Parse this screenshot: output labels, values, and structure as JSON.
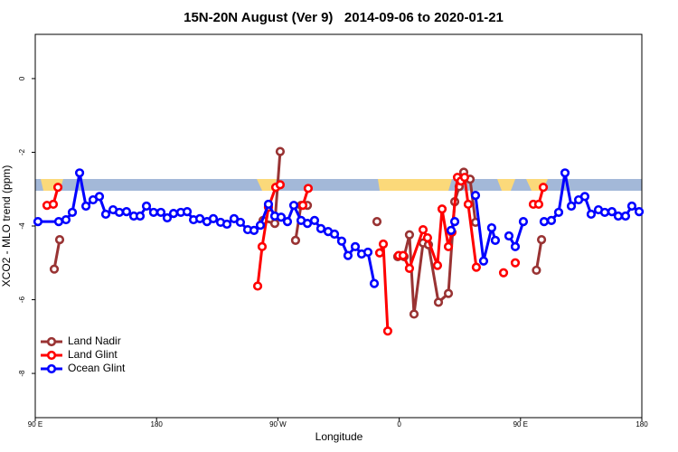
{
  "chart_data": {
    "type": "line",
    "title": "15N-20N August (Ver 9)   2014-09-06 to 2020-01-21",
    "xlabel": "Longitude",
    "ylabel": "XCO2 - MLO trend (ppm)",
    "xlim": [
      90,
      540
    ],
    "ylim": [
      -9.2,
      1.2
    ],
    "xticks": [
      {
        "value": 90,
        "label": "90 E"
      },
      180,
      {
        "value": 270,
        "label": "90 W"
      },
      {
        "value": 360,
        "label": "0"
      },
      {
        "value": 450,
        "label": "90 E"
      },
      {
        "value": 540,
        "label": "180"
      }
    ],
    "yticks": [
      0,
      -2,
      -4,
      -6,
      -8
    ],
    "legend": "bottom-left",
    "series": [
      {
        "name": "Land Nadir",
        "color": "#993333",
        "x": [
          104.1,
          108.1,
          null,
          259.0,
          267.7,
          271.7,
          null,
          283.1,
          287.2,
          291.9,
          null,
          343.5,
          null,
          358.9,
          363.6,
          367.6,
          371.0,
          377.7,
          381.7,
          389.1,
          396.5,
          401.2,
          404.5,
          407.9,
          412.6,
          416.6,
          null,
          461.8,
          465.6
        ],
        "values": [
          -5.17,
          -4.37,
          null,
          -3.85,
          -3.93,
          -1.98,
          null,
          -4.39,
          -3.44,
          -3.44,
          null,
          -3.88,
          null,
          -4.83,
          -4.83,
          -4.24,
          -6.39,
          -4.46,
          -4.51,
          -6.07,
          -5.83,
          -3.34,
          -2.93,
          -2.54,
          -2.73,
          -3.9,
          null,
          -5.2,
          -4.37
        ]
      },
      {
        "name": "Land Glint",
        "color": "#ff0000",
        "x": [
          98.7,
          103.4,
          106.8,
          null,
          255.0,
          258.3,
          263.0,
          268.4,
          271.7,
          null,
          288.5,
          292.5,
          null,
          345.5,
          348.2,
          351.5,
          null,
          359.6,
          362.9,
          367.6,
          377.7,
          381.0,
          388.4,
          391.8,
          396.5,
          399.1,
          403.2,
          405.8,
          408.5,
          411.2,
          417.2,
          null,
          437.4,
          null,
          446.1,
          null,
          459.5,
          463.5,
          466.9
        ],
        "values": [
          -3.44,
          -3.41,
          -2.95,
          null,
          -5.63,
          -4.56,
          -3.49,
          -2.95,
          -2.88,
          null,
          -3.44,
          -2.98,
          null,
          -4.73,
          -4.49,
          -6.85,
          null,
          -4.8,
          -4.8,
          -5.15,
          -4.1,
          -4.32,
          -5.07,
          -3.54,
          -4.56,
          -4.17,
          -2.68,
          -2.78,
          -2.68,
          -3.41,
          -5.12,
          null,
          -5.27,
          null,
          -5.0,
          null,
          -3.41,
          -3.41,
          -2.95
        ]
      },
      {
        "name": "Ocean Glint",
        "color": "#0000ff",
        "x": [
          92.0,
          107.4,
          112.8,
          117.5,
          122.9,
          127.6,
          132.9,
          137.6,
          142.3,
          147.7,
          152.4,
          157.7,
          163.1,
          167.8,
          172.5,
          177.8,
          183.2,
          187.9,
          192.6,
          198.0,
          202.7,
          207.4,
          212.1,
          217.4,
          222.1,
          227.5,
          232.2,
          237.5,
          242.2,
          247.6,
          252.3,
          257.0,
          263.0,
          267.7,
          272.4,
          277.1,
          281.8,
          287.2,
          291.9,
          297.2,
          301.9,
          307.3,
          312.0,
          317.3,
          322.0,
          327.4,
          332.1,
          336.8,
          341.5,
          null,
          398.5,
          401.2,
          null,
          416.6,
          422.6,
          428.6,
          431.3,
          null,
          441.4,
          446.1,
          452.1,
          null,
          467.5,
          472.9,
          478.3,
          483.0,
          487.7,
          493.1,
          497.7,
          502.4,
          507.8,
          512.5,
          517.8,
          522.5,
          527.9,
          532.6,
          538.0
        ],
        "values": [
          -3.88,
          -3.88,
          -3.83,
          -3.63,
          -2.56,
          -3.46,
          -3.29,
          -3.2,
          -3.68,
          -3.56,
          -3.63,
          -3.61,
          -3.73,
          -3.73,
          -3.46,
          -3.63,
          -3.63,
          -3.78,
          -3.66,
          -3.63,
          -3.61,
          -3.83,
          -3.8,
          -3.88,
          -3.8,
          -3.9,
          -3.95,
          -3.8,
          -3.9,
          -4.1,
          -4.12,
          -3.98,
          -3.41,
          -3.73,
          -3.76,
          -3.88,
          -3.44,
          -3.85,
          -3.93,
          -3.85,
          -4.07,
          -4.15,
          -4.22,
          -4.41,
          -4.8,
          -4.56,
          -4.76,
          -4.71,
          -5.56,
          null,
          -4.12,
          -3.88,
          null,
          -3.17,
          -4.95,
          -4.05,
          -4.39,
          null,
          -4.27,
          -4.56,
          -3.88,
          null,
          -3.88,
          -3.85,
          -3.63,
          -2.56,
          -3.46,
          -3.29,
          -3.2,
          -3.68,
          -3.56,
          -3.63,
          -3.61,
          -3.73,
          -3.73,
          -3.46,
          -3.61
        ]
      }
    ]
  }
}
